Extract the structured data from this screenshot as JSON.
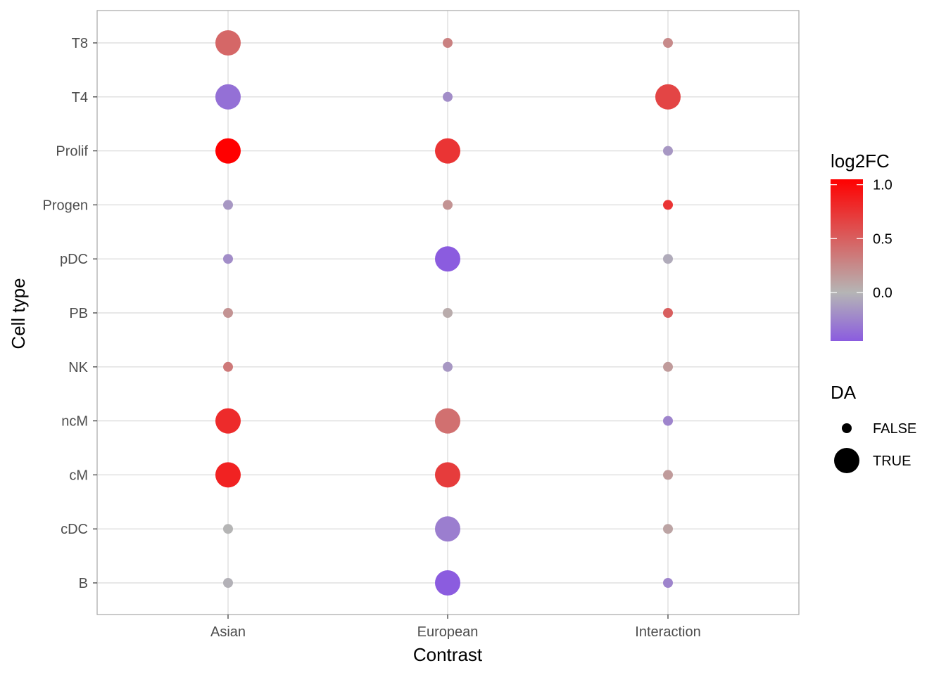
{
  "chart_data": {
    "type": "scatter",
    "xlabel": "Contrast",
    "ylabel": "Cell type",
    "x_categories": [
      "Asian",
      "European",
      "Interaction"
    ],
    "y_categories": [
      "B",
      "cDC",
      "cM",
      "ncM",
      "NK",
      "PB",
      "pDC",
      "Progen",
      "Prolif",
      "T4",
      "T8"
    ],
    "grid": true,
    "color_legend": {
      "title": "log2FC",
      "ticks": [
        "1.0",
        "0.5",
        "0.0"
      ],
      "tick_values": [
        1.0,
        0.5,
        0.0
      ],
      "range": [
        -0.45,
        1.05
      ],
      "low_color": "#8b5cdf",
      "mid_color": "#b5b5b5",
      "high_color": "#ff0000",
      "placement": "right"
    },
    "size_legend": {
      "title": "DA",
      "entries": [
        {
          "label": "FALSE",
          "value": false
        },
        {
          "label": "TRUE",
          "value": true
        }
      ],
      "placement": "right"
    },
    "points": [
      {
        "x": "Asian",
        "y": "T8",
        "log2FC": 0.45,
        "DA": true
      },
      {
        "x": "Asian",
        "y": "T4",
        "log2FC": -0.35,
        "DA": true
      },
      {
        "x": "Asian",
        "y": "Prolif",
        "log2FC": 1.05,
        "DA": true
      },
      {
        "x": "Asian",
        "y": "Progen",
        "log2FC": -0.15,
        "DA": false
      },
      {
        "x": "Asian",
        "y": "pDC",
        "log2FC": -0.2,
        "DA": false
      },
      {
        "x": "Asian",
        "y": "PB",
        "log2FC": 0.2,
        "DA": false
      },
      {
        "x": "Asian",
        "y": "NK",
        "log2FC": 0.35,
        "DA": false
      },
      {
        "x": "Asian",
        "y": "ncM",
        "log2FC": 0.8,
        "DA": true
      },
      {
        "x": "Asian",
        "y": "cM",
        "log2FC": 0.85,
        "DA": true
      },
      {
        "x": "Asian",
        "y": "cDC",
        "log2FC": 0.0,
        "DA": false
      },
      {
        "x": "Asian",
        "y": "B",
        "log2FC": -0.02,
        "DA": false
      },
      {
        "x": "European",
        "y": "T8",
        "log2FC": 0.3,
        "DA": false
      },
      {
        "x": "European",
        "y": "T4",
        "log2FC": -0.2,
        "DA": false
      },
      {
        "x": "European",
        "y": "Prolif",
        "log2FC": 0.75,
        "DA": true
      },
      {
        "x": "European",
        "y": "Progen",
        "log2FC": 0.2,
        "DA": false
      },
      {
        "x": "European",
        "y": "pDC",
        "log2FC": -0.45,
        "DA": true
      },
      {
        "x": "European",
        "y": "PB",
        "log2FC": 0.05,
        "DA": false
      },
      {
        "x": "European",
        "y": "NK",
        "log2FC": -0.15,
        "DA": false
      },
      {
        "x": "European",
        "y": "ncM",
        "log2FC": 0.4,
        "DA": true
      },
      {
        "x": "European",
        "y": "cM",
        "log2FC": 0.7,
        "DA": true
      },
      {
        "x": "European",
        "y": "cDC",
        "log2FC": -0.28,
        "DA": true
      },
      {
        "x": "European",
        "y": "B",
        "log2FC": -0.45,
        "DA": true
      },
      {
        "x": "Interaction",
        "y": "T8",
        "log2FC": 0.25,
        "DA": false
      },
      {
        "x": "Interaction",
        "y": "T4",
        "log2FC": 0.65,
        "DA": true
      },
      {
        "x": "Interaction",
        "y": "Prolif",
        "log2FC": -0.15,
        "DA": false
      },
      {
        "x": "Interaction",
        "y": "Progen",
        "log2FC": 0.75,
        "DA": false
      },
      {
        "x": "Interaction",
        "y": "pDC",
        "log2FC": -0.05,
        "DA": false
      },
      {
        "x": "Interaction",
        "y": "PB",
        "log2FC": 0.5,
        "DA": false
      },
      {
        "x": "Interaction",
        "y": "NK",
        "log2FC": 0.15,
        "DA": false
      },
      {
        "x": "Interaction",
        "y": "ncM",
        "log2FC": -0.25,
        "DA": false
      },
      {
        "x": "Interaction",
        "y": "cM",
        "log2FC": 0.15,
        "DA": false
      },
      {
        "x": "Interaction",
        "y": "cDC",
        "log2FC": 0.1,
        "DA": false
      },
      {
        "x": "Interaction",
        "y": "B",
        "log2FC": -0.25,
        "DA": false
      }
    ]
  }
}
